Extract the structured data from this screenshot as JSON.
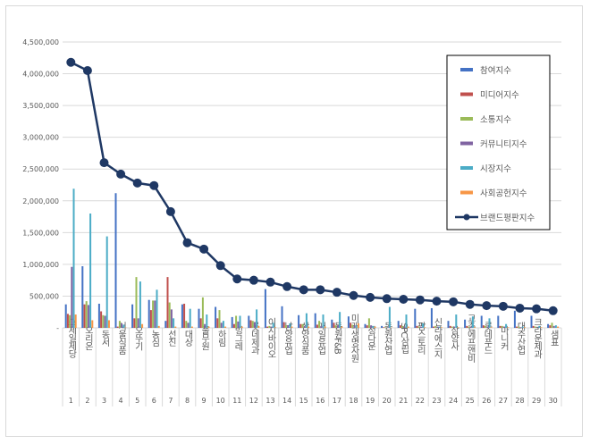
{
  "chart_data": {
    "type": "bar",
    "title": "",
    "xlabel": "",
    "ylabel": "",
    "ylim": [
      0,
      4500000
    ],
    "yticks": [
      "-",
      "500,000",
      "1,000,000",
      "1,500,000",
      "2,000,000",
      "2,500,000",
      "3,000,000",
      "3,500,000",
      "4,000,000",
      "4,500,000"
    ],
    "grid": true,
    "legend_position": "top-right",
    "categories": [
      "CJ제일제당",
      "오리온",
      "동서",
      "서울식품",
      "오뚜기",
      "농심",
      "선진",
      "대상",
      "풀무원",
      "하림",
      "빙그레",
      "롯데제과",
      "이지바이오",
      "남양유업",
      "삼양식품",
      "매일유업",
      "동원F&B",
      "미래생명자원",
      "정다운",
      "동원산업",
      "SPC삼립",
      "팜스토리",
      "신라에스지",
      "삼양사",
      "교촌에프앤비",
      "롯데푸드",
      "마니커",
      "대주산업",
      "크라운제과",
      "샘표"
    ],
    "ranks": [
      "1",
      "2",
      "3",
      "4",
      "5",
      "6",
      "7",
      "8",
      "9",
      "10",
      "11",
      "12",
      "13",
      "14",
      "15",
      "16",
      "17",
      "18",
      "19",
      "20",
      "21",
      "22",
      "23",
      "24",
      "25",
      "26",
      "27",
      "28",
      "29",
      "30"
    ],
    "series": [
      {
        "name": "참여지수",
        "kind": "bar",
        "color": "#4472c4",
        "values": [
          370000,
          970000,
          380000,
          2120000,
          370000,
          440000,
          110000,
          370000,
          300000,
          330000,
          170000,
          190000,
          610000,
          340000,
          200000,
          230000,
          130000,
          180000,
          60000,
          30000,
          110000,
          300000,
          310000,
          110000,
          130000,
          190000,
          190000,
          270000,
          190000,
          60000
        ]
      },
      {
        "name": "미디어지수",
        "kind": "bar",
        "color": "#c0504d",
        "values": [
          220000,
          370000,
          260000,
          20000,
          150000,
          280000,
          800000,
          380000,
          150000,
          150000,
          60000,
          120000,
          20000,
          90000,
          60000,
          50000,
          80000,
          80000,
          40000,
          10000,
          40000,
          30000,
          20000,
          30000,
          30000,
          40000,
          30000,
          20000,
          30000,
          40000
        ]
      },
      {
        "name": "소통지수",
        "kind": "bar",
        "color": "#9bbb59",
        "values": [
          200000,
          420000,
          200000,
          110000,
          800000,
          430000,
          400000,
          110000,
          480000,
          280000,
          190000,
          110000,
          30000,
          40000,
          60000,
          110000,
          40000,
          50000,
          150000,
          10000,
          30000,
          20000,
          30000,
          20000,
          20000,
          30000,
          30000,
          20000,
          20000,
          80000
        ]
      },
      {
        "name": "커뮤니티지수",
        "kind": "bar",
        "color": "#8064a2",
        "values": [
          960000,
          360000,
          190000,
          70000,
          150000,
          430000,
          290000,
          80000,
          60000,
          80000,
          100000,
          90000,
          20000,
          40000,
          30000,
          30000,
          40000,
          40000,
          40000,
          10000,
          20000,
          20000,
          20000,
          20000,
          20000,
          20000,
          20000,
          10000,
          10000,
          30000
        ]
      },
      {
        "name": "시장지수",
        "kind": "bar",
        "color": "#4bacc6",
        "values": [
          2190000,
          1800000,
          1440000,
          50000,
          730000,
          600000,
          150000,
          300000,
          210000,
          110000,
          190000,
          290000,
          80000,
          70000,
          230000,
          210000,
          250000,
          40000,
          30000,
          330000,
          210000,
          70000,
          20000,
          210000,
          180000,
          150000,
          60000,
          20000,
          30000,
          40000
        ]
      },
      {
        "name": "사회공헌지수",
        "kind": "bar",
        "color": "#f79646",
        "values": [
          210000,
          120000,
          120000,
          5000,
          60000,
          30000,
          20000,
          20000,
          20000,
          20000,
          20000,
          30000,
          10000,
          20000,
          20000,
          20000,
          20000,
          70000,
          20000,
          5000,
          20000,
          10000,
          10000,
          10000,
          10000,
          10000,
          10000,
          10000,
          10000,
          20000
        ]
      },
      {
        "name": "브랜드평판지수",
        "kind": "line",
        "color": "#1f3864",
        "values": [
          4180000,
          4050000,
          2600000,
          2420000,
          2280000,
          2240000,
          1830000,
          1340000,
          1240000,
          980000,
          770000,
          750000,
          720000,
          650000,
          600000,
          600000,
          560000,
          510000,
          480000,
          460000,
          450000,
          440000,
          420000,
          410000,
          370000,
          350000,
          340000,
          310000,
          300000,
          270000
        ]
      }
    ]
  }
}
